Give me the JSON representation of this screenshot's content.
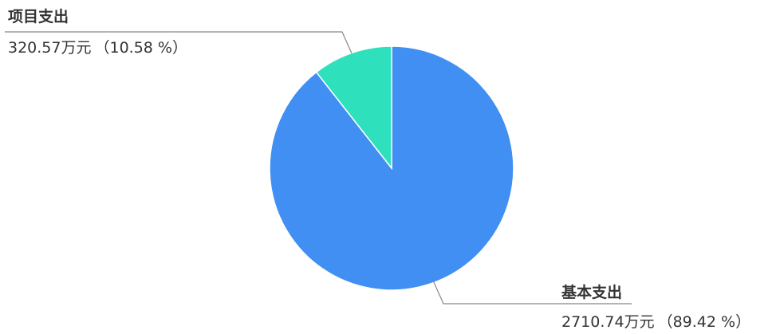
{
  "chart_data": {
    "type": "pie",
    "title": "",
    "start_angle_deg": 0,
    "direction": "clockwise",
    "slices": [
      {
        "name": "基本支出",
        "value": 2710.74,
        "value_text": "2710.74万元",
        "percent": 89.42,
        "percent_text": "（89.42 %）",
        "color": "#418ff2"
      },
      {
        "name": "项目支出",
        "value": 320.57,
        "value_text": "320.57万元",
        "percent": 10.58,
        "percent_text": "（10.58 %）",
        "color": "#2ee0bb"
      }
    ],
    "legend": "none"
  }
}
